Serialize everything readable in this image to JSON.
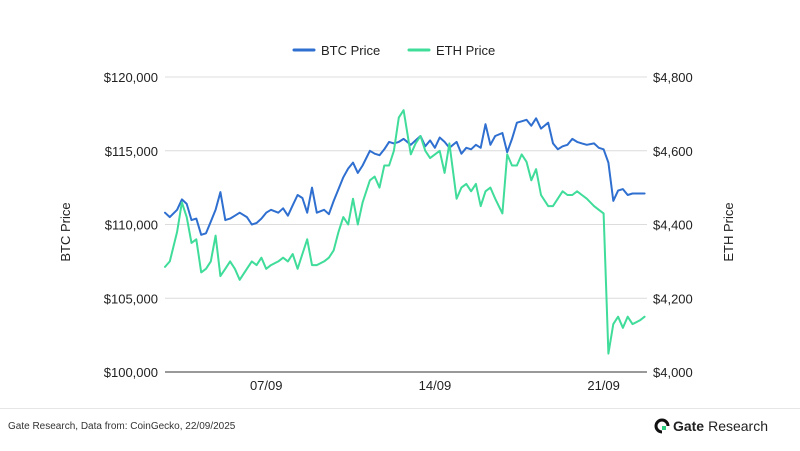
{
  "chart_data": {
    "type": "line",
    "legend": {
      "placement": "top-center"
    },
    "legend_entries": [
      "BTC Price",
      "ETH Price"
    ],
    "x_tick_labels": [
      "07/09",
      "14/09",
      "21/09"
    ],
    "x_tick_days": [
      7,
      14,
      21
    ],
    "grid": true,
    "y_left": {
      "label": "BTC Price",
      "range": [
        100000,
        120000
      ],
      "ticks": [
        100000,
        105000,
        110000,
        115000,
        120000
      ],
      "tick_labels": [
        "$100,000",
        "$105,000",
        "$110,000",
        "$115,000",
        "$120,000"
      ]
    },
    "y_right": {
      "label": "ETH Price",
      "range": [
        4000,
        4800
      ],
      "ticks": [
        4000,
        4200,
        4400,
        4600,
        4800
      ],
      "tick_labels": [
        "$4,000",
        "$4,200",
        "$4,400",
        "$4,600",
        "$4,800"
      ]
    },
    "x_range_days": [
      2.8,
      22.8
    ],
    "series": [
      {
        "name": "BTC Price",
        "axis": "left",
        "color": "#2f6fd0",
        "x": [
          2.8,
          3.0,
          3.3,
          3.5,
          3.7,
          3.9,
          4.1,
          4.3,
          4.5,
          4.7,
          4.9,
          5.1,
          5.3,
          5.5,
          5.7,
          5.9,
          6.2,
          6.4,
          6.6,
          6.8,
          7.0,
          7.2,
          7.5,
          7.7,
          7.9,
          8.1,
          8.3,
          8.5,
          8.7,
          8.9,
          9.1,
          9.4,
          9.6,
          9.8,
          10.0,
          10.2,
          10.4,
          10.6,
          10.8,
          11.0,
          11.3,
          11.5,
          11.7,
          11.9,
          12.1,
          12.3,
          12.5,
          12.7,
          13.0,
          13.2,
          13.4,
          13.6,
          13.8,
          14.0,
          14.2,
          14.4,
          14.6,
          14.9,
          15.1,
          15.3,
          15.5,
          15.7,
          15.9,
          16.1,
          16.3,
          16.5,
          16.8,
          17.0,
          17.2,
          17.4,
          17.6,
          17.8,
          18.0,
          18.2,
          18.4,
          18.7,
          18.9,
          19.1,
          19.3,
          19.5,
          19.7,
          19.9,
          20.1,
          20.3,
          20.6,
          20.8,
          21.0,
          21.2,
          21.4,
          21.6,
          21.8,
          22.0,
          22.2,
          22.5,
          22.7
        ],
        "y": [
          110800,
          110500,
          111000,
          111700,
          111400,
          110300,
          110400,
          109300,
          109400,
          110200,
          111000,
          112200,
          110300,
          110400,
          110600,
          110800,
          110500,
          110000,
          110100,
          110400,
          110800,
          111000,
          110800,
          111100,
          110600,
          111300,
          112000,
          111800,
          110800,
          112500,
          110800,
          111000,
          110700,
          111600,
          112400,
          113200,
          113800,
          114200,
          113500,
          114000,
          115000,
          114800,
          114700,
          115100,
          115600,
          115500,
          115600,
          115800,
          115400,
          115700,
          116000,
          115300,
          115700,
          115200,
          115900,
          115600,
          115200,
          115600,
          114800,
          115200,
          115100,
          115400,
          115200,
          116800,
          115400,
          116000,
          116200,
          114900,
          115800,
          116900,
          117000,
          117100,
          116700,
          117200,
          116500,
          116900,
          115500,
          115100,
          115300,
          115400,
          115800,
          115600,
          115500,
          115400,
          115500,
          115200,
          115100,
          114200,
          111600,
          112300,
          112400,
          112000,
          112100,
          112100,
          112100
        ]
      },
      {
        "name": "ETH Price",
        "axis": "right",
        "color": "#3fdc9a",
        "x": [
          2.8,
          3.0,
          3.3,
          3.5,
          3.7,
          3.9,
          4.1,
          4.3,
          4.5,
          4.7,
          4.9,
          5.1,
          5.3,
          5.5,
          5.7,
          5.9,
          6.2,
          6.4,
          6.6,
          6.8,
          7.0,
          7.2,
          7.5,
          7.7,
          7.9,
          8.1,
          8.3,
          8.5,
          8.7,
          8.9,
          9.1,
          9.4,
          9.6,
          9.8,
          10.0,
          10.2,
          10.4,
          10.6,
          10.8,
          11.0,
          11.3,
          11.5,
          11.7,
          11.9,
          12.1,
          12.3,
          12.5,
          12.7,
          13.0,
          13.2,
          13.4,
          13.6,
          13.8,
          14.0,
          14.2,
          14.4,
          14.6,
          14.9,
          15.1,
          15.3,
          15.5,
          15.7,
          15.9,
          16.1,
          16.3,
          16.5,
          16.8,
          17.0,
          17.2,
          17.4,
          17.6,
          17.8,
          18.0,
          18.2,
          18.4,
          18.7,
          18.9,
          19.1,
          19.3,
          19.5,
          19.7,
          19.9,
          20.1,
          20.3,
          20.6,
          20.8,
          21.0,
          21.2,
          21.4,
          21.6,
          21.8,
          22.0,
          22.2,
          22.5,
          22.7
        ],
        "y": [
          4285,
          4300,
          4380,
          4460,
          4420,
          4350,
          4360,
          4270,
          4280,
          4300,
          4370,
          4260,
          4280,
          4300,
          4280,
          4250,
          4280,
          4300,
          4290,
          4310,
          4280,
          4290,
          4300,
          4310,
          4300,
          4320,
          4280,
          4320,
          4360,
          4290,
          4290,
          4300,
          4310,
          4330,
          4380,
          4420,
          4400,
          4470,
          4400,
          4460,
          4520,
          4530,
          4500,
          4560,
          4560,
          4600,
          4690,
          4710,
          4590,
          4620,
          4640,
          4600,
          4580,
          4590,
          4600,
          4540,
          4620,
          4470,
          4500,
          4510,
          4490,
          4510,
          4450,
          4490,
          4500,
          4470,
          4430,
          4590,
          4560,
          4560,
          4590,
          4570,
          4520,
          4550,
          4480,
          4450,
          4450,
          4470,
          4490,
          4480,
          4480,
          4490,
          4480,
          4470,
          4450,
          4440,
          4430,
          4050,
          4130,
          4150,
          4120,
          4150,
          4130,
          4140,
          4150
        ]
      }
    ]
  },
  "footer": {
    "source": "Gate Research, Data from: CoinGecko, 22/09/2025",
    "brand_name": "Gate",
    "brand_suffix": "Research"
  }
}
